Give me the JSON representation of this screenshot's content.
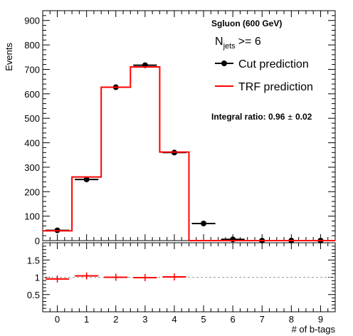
{
  "chart_data": [
    {
      "type": "histogram",
      "ylabel": "Events",
      "ylim": [
        0,
        940
      ],
      "y_ticks": [
        "0",
        "100",
        "200",
        "300",
        "400",
        "500",
        "600",
        "700",
        "800",
        "900"
      ],
      "bin_edges": [
        -0.5,
        0.5,
        1.5,
        2.5,
        3.5,
        4.5,
        5.5,
        6.5,
        7.5,
        8.5,
        9.5
      ],
      "series": [
        {
          "name": "Cut prediction",
          "style": "markers",
          "color": "#000000",
          "values": [
            42,
            250,
            627,
            717,
            360,
            70,
            5,
            0,
            0,
            0
          ]
        },
        {
          "name": "TRF prediction",
          "style": "step",
          "color": "#ff0000",
          "values": [
            40,
            260,
            627,
            710,
            362,
            0,
            0,
            0,
            0,
            0
          ]
        }
      ],
      "annotations": {
        "sample": "Sgluon (600 GeV)",
        "njets_main": "N",
        "njets_sub": "jets",
        "njets_cut": ">= 6",
        "integral_label": "Integral ratio: 0.96",
        "integral_pm": "±",
        "integral_err": "0.02"
      }
    },
    {
      "type": "ratio",
      "xlabel": "# of b-tags",
      "xlim": [
        -0.5,
        9.5
      ],
      "ylim": [
        0,
        2
      ],
      "x_ticks": [
        "0",
        "1",
        "2",
        "3",
        "4",
        "5",
        "6",
        "7",
        "8",
        "9"
      ],
      "y_ticks": [
        "0.5",
        "1",
        "1.5"
      ],
      "reference_line": 1,
      "values": [
        0.95,
        1.04,
        1.0,
        0.99,
        1.01
      ]
    }
  ]
}
